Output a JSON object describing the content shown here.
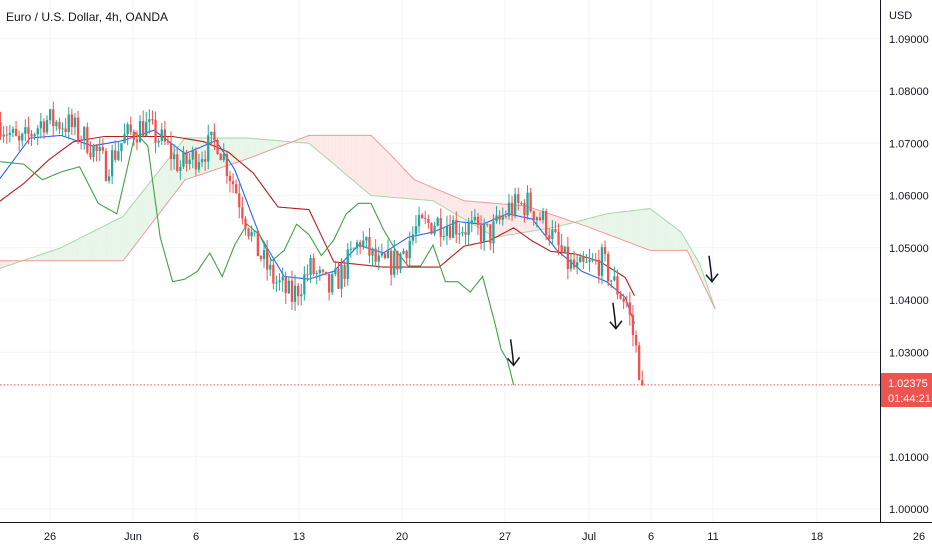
{
  "header": {
    "title": "Euro / U.S. Dollar, 4h, OANDA",
    "currency": "USD"
  },
  "price_tag": {
    "price": "1.02375",
    "countdown": "01:44:21"
  },
  "colors": {
    "up": "#26a69a",
    "down": "#ef5350",
    "tenkan": "#2962ff",
    "kijun": "#b71c1c",
    "chikou": "#43a047",
    "span_a": "#a5d6a7",
    "span_b": "#ef9a9a",
    "cloud_bull": "#e8f5e9",
    "cloud_bear": "#fde8e8",
    "grid": "#f0f3fa",
    "axis": "#131722",
    "price_line": "#ef5350",
    "tag_bg": "#ef5350"
  },
  "chart_data": {
    "type": "candlestick",
    "title": "Euro / U.S. Dollar, 4h, OANDA",
    "ylabel": "USD",
    "ylim": [
      0.9995,
      1.0935
    ],
    "x_tick_labels": [
      "26",
      "Jun",
      "6",
      "13",
      "20",
      "27",
      "Jul",
      "6",
      "11",
      "18",
      "26"
    ],
    "y_tick_labels": [
      "1.09000",
      "1.08000",
      "1.07000",
      "1.06000",
      "1.05000",
      "1.04000",
      "1.03000",
      "1.01000",
      "1.00000"
    ],
    "last_price": 1.02375,
    "grid": true,
    "candle_close_keypoints": [
      [
        0,
        1.074
      ],
      [
        6,
        1.0695
      ],
      [
        14,
        1.0745
      ],
      [
        22,
        1.0735
      ],
      [
        28,
        1.0705
      ],
      [
        34,
        1.0655
      ],
      [
        40,
        1.071
      ],
      [
        46,
        1.0735
      ],
      [
        52,
        1.0705
      ],
      [
        58,
        1.0655
      ],
      [
        64,
        1.068
      ],
      [
        70,
        1.0705
      ],
      [
        76,
        1.061
      ],
      [
        82,
        1.0505
      ],
      [
        88,
        1.044
      ],
      [
        94,
        1.0405
      ],
      [
        100,
        1.046
      ],
      [
        106,
        1.042
      ],
      [
        110,
        1.045
      ],
      [
        116,
        1.0515
      ],
      [
        122,
        1.0465
      ],
      [
        128,
        1.0475
      ],
      [
        134,
        1.0535
      ],
      [
        140,
        1.055
      ],
      [
        146,
        1.0545
      ],
      [
        152,
        1.0535
      ],
      [
        158,
        1.0525
      ],
      [
        164,
        1.0575
      ],
      [
        170,
        1.0585
      ],
      [
        176,
        1.0545
      ],
      [
        182,
        1.0475
      ],
      [
        186,
        1.0455
      ],
      [
        190,
        1.0465
      ],
      [
        194,
        1.0475
      ],
      [
        198,
        1.043
      ],
      [
        202,
        1.0395
      ],
      [
        205,
        1.0305
      ],
      [
        207,
        1.02375
      ]
    ],
    "series": [
      {
        "name": "Tenkan-sen",
        "color": "#2962ff",
        "points": [
          [
            0,
            1.063
          ],
          [
            10,
            1.071
          ],
          [
            20,
            1.0715
          ],
          [
            30,
            1.0695
          ],
          [
            40,
            1.0705
          ],
          [
            50,
            1.0725
          ],
          [
            60,
            1.068
          ],
          [
            70,
            1.0705
          ],
          [
            76,
            1.065
          ],
          [
            84,
            1.0525
          ],
          [
            92,
            1.0445
          ],
          [
            100,
            1.044
          ],
          [
            108,
            1.0455
          ],
          [
            116,
            1.0505
          ],
          [
            124,
            1.049
          ],
          [
            132,
            1.052
          ],
          [
            140,
            1.053
          ],
          [
            148,
            1.055
          ],
          [
            156,
            1.0545
          ],
          [
            164,
            1.0565
          ],
          [
            172,
            1.0555
          ],
          [
            180,
            1.0495
          ],
          [
            188,
            1.0455
          ],
          [
            196,
            1.0435
          ],
          [
            202,
            1.0405
          ],
          [
            205,
            1.0355
          ]
        ]
      },
      {
        "name": "Kijun-sen",
        "color": "#b71c1c",
        "points": [
          [
            0,
            1.0588
          ],
          [
            8,
            1.0623
          ],
          [
            16,
            1.0668
          ],
          [
            24,
            1.0703
          ],
          [
            34,
            1.0713
          ],
          [
            46,
            1.0713
          ],
          [
            56,
            1.0713
          ],
          [
            66,
            1.0703
          ],
          [
            74,
            1.0683
          ],
          [
            82,
            1.0643
          ],
          [
            90,
            1.0578
          ],
          [
            100,
            1.0573
          ],
          [
            108,
            1.0473
          ],
          [
            116,
            1.0468
          ],
          [
            124,
            1.0463
          ],
          [
            132,
            1.0463
          ],
          [
            142,
            1.0463
          ],
          [
            150,
            1.0503
          ],
          [
            158,
            1.0513
          ],
          [
            166,
            1.0538
          ],
          [
            172,
            1.0513
          ],
          [
            178,
            1.0493
          ],
          [
            186,
            1.0488
          ],
          [
            194,
            1.0473
          ],
          [
            202,
            1.0443
          ],
          [
            205,
            1.0408
          ]
        ]
      },
      {
        "name": "Chikou span",
        "color": "#43a047",
        "points": [
          [
            0,
            1.0665
          ],
          [
            8,
            1.066
          ],
          [
            14,
            1.063
          ],
          [
            20,
            1.0645
          ],
          [
            26,
            1.0655
          ],
          [
            32,
            1.0585
          ],
          [
            38,
            1.0565
          ],
          [
            44,
            1.072
          ],
          [
            48,
            1.0695
          ],
          [
            52,
            1.052
          ],
          [
            56,
            1.0435
          ],
          [
            60,
            1.044
          ],
          [
            64,
            1.0455
          ],
          [
            68,
            1.049
          ],
          [
            72,
            1.0445
          ],
          [
            76,
            1.0505
          ],
          [
            80,
            1.0545
          ],
          [
            84,
            1.0525
          ],
          [
            88,
            1.0475
          ],
          [
            92,
            1.0495
          ],
          [
            96,
            1.0545
          ],
          [
            100,
            1.0525
          ],
          [
            104,
            1.0485
          ],
          [
            108,
            1.0515
          ],
          [
            112,
            1.0565
          ],
          [
            116,
            1.0585
          ],
          [
            120,
            1.0585
          ],
          [
            124,
            1.0535
          ],
          [
            128,
            1.0495
          ],
          [
            132,
            1.0465
          ],
          [
            136,
            1.0465
          ],
          [
            140,
            1.0505
          ],
          [
            144,
            1.0435
          ],
          [
            148,
            1.0435
          ],
          [
            152,
            1.0415
          ],
          [
            156,
            1.0445
          ],
          [
            160,
            1.0355
          ],
          [
            162,
            1.0305
          ],
          [
            164,
            1.0285
          ],
          [
            166,
            1.02375
          ]
        ]
      }
    ],
    "cloud": {
      "x_end": 231,
      "span_a": [
        [
          0,
          1.046
        ],
        [
          20,
          1.05
        ],
        [
          40,
          1.056
        ],
        [
          60,
          1.071
        ],
        [
          80,
          1.071
        ],
        [
          100,
          1.07
        ],
        [
          120,
          1.06
        ],
        [
          140,
          1.059
        ],
        [
          160,
          1.052
        ],
        [
          180,
          1.054
        ],
        [
          196,
          1.0565
        ],
        [
          210,
          1.0575
        ],
        [
          220,
          1.053
        ],
        [
          226,
          1.047
        ],
        [
          231,
          1.0383
        ]
      ],
      "span_b": [
        [
          0,
          1.0475
        ],
        [
          20,
          1.0475
        ],
        [
          40,
          1.0475
        ],
        [
          60,
          1.063
        ],
        [
          80,
          1.067
        ],
        [
          100,
          1.0715
        ],
        [
          120,
          1.0715
        ],
        [
          126,
          1.068
        ],
        [
          134,
          1.063
        ],
        [
          150,
          1.059
        ],
        [
          170,
          1.058
        ],
        [
          190,
          1.054
        ],
        [
          210,
          1.0495
        ],
        [
          222,
          1.0495
        ],
        [
          231,
          1.0383
        ]
      ]
    },
    "annotations": [
      {
        "type": "down-arrow",
        "x": 166,
        "y": 1.0275
      },
      {
        "type": "down-arrow",
        "x": 199,
        "y": 1.0345
      },
      {
        "type": "down-arrow",
        "x": 230,
        "y": 1.0435
      }
    ]
  }
}
